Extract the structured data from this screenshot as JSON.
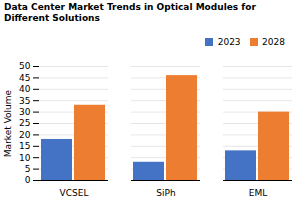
{
  "chart_data": {
    "type": "bar",
    "title": "Data Center Market Trends in Optical Modules for Different Solutions",
    "categories": [
      "VCSEL",
      "SiPh",
      "EML"
    ],
    "series": [
      {
        "name": "2023",
        "color": "#4472C4",
        "values": [
          18,
          8,
          13
        ]
      },
      {
        "name": "2028",
        "color": "#ED7D31",
        "values": [
          33,
          46,
          30
        ]
      }
    ],
    "ylabel": "Market Volume",
    "ylim": [
      0,
      50
    ],
    "yticks": [
      0,
      5,
      10,
      15,
      20,
      25,
      30,
      35,
      40,
      45,
      50
    ],
    "grid": true,
    "legend": "right"
  }
}
